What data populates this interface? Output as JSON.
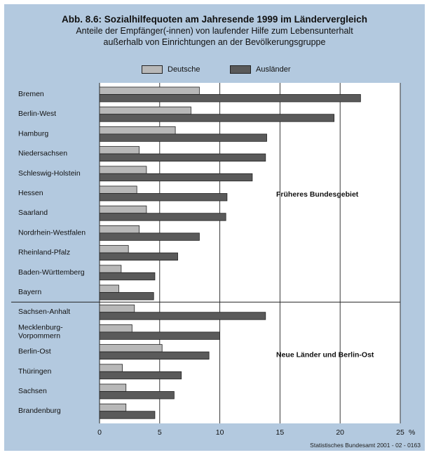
{
  "chart_data": {
    "type": "bar",
    "orientation": "horizontal",
    "title": "Abb. 8.6: Sozialhilfequoten am Jahresende 1999 im Ländervergleich",
    "subtitle_lines": [
      "Anteile der Empfänger(-innen) von laufender Hilfe zum Lebensunterhalt",
      "außerhalb von Einrichtungen an der Bevölkerungsgruppe"
    ],
    "categories": [
      "Bremen",
      "Berlin-West",
      "Hamburg",
      "Niedersachsen",
      "Schleswig-Holstein",
      "Hessen",
      "Saarland",
      "Nordrhein-Westfalen",
      "Rheinland-Pfalz",
      "Baden-Württemberg",
      "Bayern",
      "Sachsen-Anhalt",
      "Mecklenburg-\nVorpommern",
      "Berlin-Ost",
      "Thüringen",
      "Sachsen",
      "Brandenburg"
    ],
    "series": [
      {
        "name": "Deutsche",
        "color": "#b8b8b8",
        "values": [
          8.3,
          7.6,
          6.3,
          3.3,
          3.9,
          3.1,
          3.9,
          3.3,
          2.4,
          1.8,
          1.6,
          2.9,
          2.7,
          5.2,
          1.9,
          2.2,
          2.2
        ]
      },
      {
        "name": "Ausländer",
        "color": "#5a5a5a",
        "values": [
          21.7,
          19.5,
          13.9,
          13.8,
          12.7,
          10.6,
          10.5,
          8.3,
          6.5,
          4.6,
          4.5,
          13.8,
          10.0,
          9.1,
          6.8,
          6.2,
          4.6
        ]
      }
    ],
    "xlim": [
      0,
      25
    ],
    "xticks": [
      "0",
      "5",
      "10",
      "15",
      "20",
      "25"
    ],
    "x_unit": "%",
    "grid": true,
    "legend_position": "top",
    "groups": [
      {
        "label": "Früheres Bundesgebiet",
        "from": 0,
        "to": 10
      },
      {
        "label": "Neue Länder und Berlin-Ost",
        "from": 11,
        "to": 16
      }
    ]
  },
  "source": "Statistisches Bundesamt 2001 - 02 - 0163",
  "colors": {
    "frame_background": "#b3c9df",
    "plot_background": "#ffffff"
  }
}
